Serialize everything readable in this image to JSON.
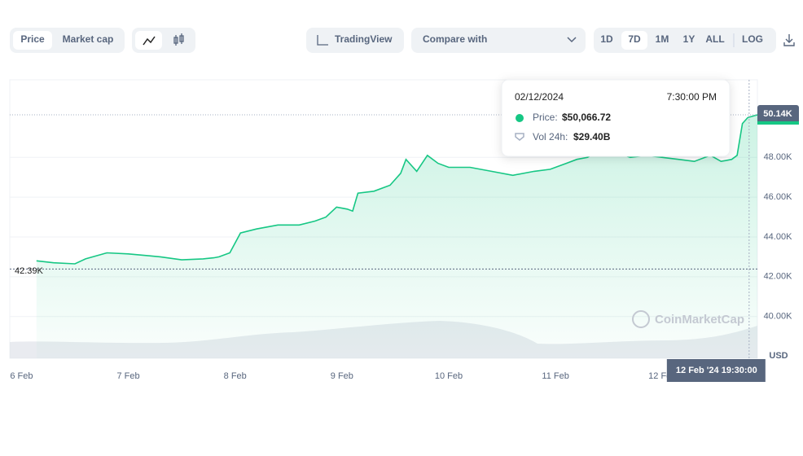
{
  "toolbar": {
    "price": "Price",
    "market_cap": "Market cap",
    "tradingview": "TradingView",
    "compare_with": "Compare with",
    "ranges": [
      "1D",
      "7D",
      "1M",
      "1Y",
      "ALL"
    ],
    "log": "LOG"
  },
  "chart_data": {
    "type": "line",
    "x": [
      0.14,
      0.3,
      0.5,
      0.6,
      0.8,
      1.0,
      1.2,
      1.3,
      1.5,
      1.7,
      1.8,
      1.85,
      1.95,
      2.05,
      2.2,
      2.4,
      2.6,
      2.75,
      2.85,
      2.95,
      3.05,
      3.1,
      3.15,
      3.3,
      3.45,
      3.55,
      3.6,
      3.7,
      3.8,
      3.9,
      4.0,
      4.2,
      4.4,
      4.6,
      4.8,
      4.95,
      5.1,
      5.2,
      5.3,
      5.45,
      5.6,
      5.7,
      5.85,
      6.0,
      6.15,
      6.3,
      6.45,
      6.55,
      6.65,
      6.7,
      6.75,
      6.8,
      6.89
    ],
    "series": [
      {
        "color": "#16c784",
        "values": [
          42800,
          42700,
          42650,
          42900,
          43200,
          43150,
          43050,
          43000,
          42850,
          42900,
          42950,
          43000,
          43200,
          44200,
          44400,
          44600,
          44600,
          44800,
          45000,
          45500,
          45400,
          45300,
          46200,
          46300,
          46600,
          47200,
          47900,
          47300,
          48100,
          47700,
          47500,
          47500,
          47300,
          47100,
          47300,
          47400,
          47700,
          47900,
          48000,
          48500,
          48200,
          48000,
          48100,
          48000,
          47900,
          47800,
          48100,
          47800,
          47900,
          48100,
          49700,
          50000,
          50140
        ]
      }
    ],
    "xlim": [
      -0.11,
      6.89
    ],
    "xticks": [
      {
        "value": 0,
        "label": "6 Feb"
      },
      {
        "value": 1,
        "label": "7 Feb"
      },
      {
        "value": 2,
        "label": "8 Feb"
      },
      {
        "value": 3,
        "label": "9 Feb"
      },
      {
        "value": 4,
        "label": "10 Feb"
      },
      {
        "value": 5,
        "label": "11 Feb"
      },
      {
        "value": 6,
        "label": "12 Feb"
      }
    ],
    "ylim": [
      37900,
      51900
    ],
    "yticks": [
      {
        "value": 40000,
        "label": "40.00K"
      },
      {
        "value": 42000,
        "label": "42.00K"
      },
      {
        "value": 44000,
        "label": "44.00K"
      },
      {
        "value": 46000,
        "label": "46.00K"
      },
      {
        "value": 48000,
        "label": "48.00K"
      }
    ],
    "unit": "USD",
    "last_price": {
      "value": 50140,
      "label": "50.14K"
    },
    "first_price": {
      "value": 42390,
      "label": "42.39K"
    },
    "cursor": {
      "value": 6.8125,
      "label": "12 Feb '24 19:30:00"
    },
    "tooltip": {
      "date": "02/12/2024",
      "time": "7:30:00 PM",
      "price_label": "Price:",
      "price": "$50,066.72",
      "vol_label": "Vol 24h:",
      "vol": "$29.40B"
    },
    "watermark": "CoinMarketCap"
  }
}
